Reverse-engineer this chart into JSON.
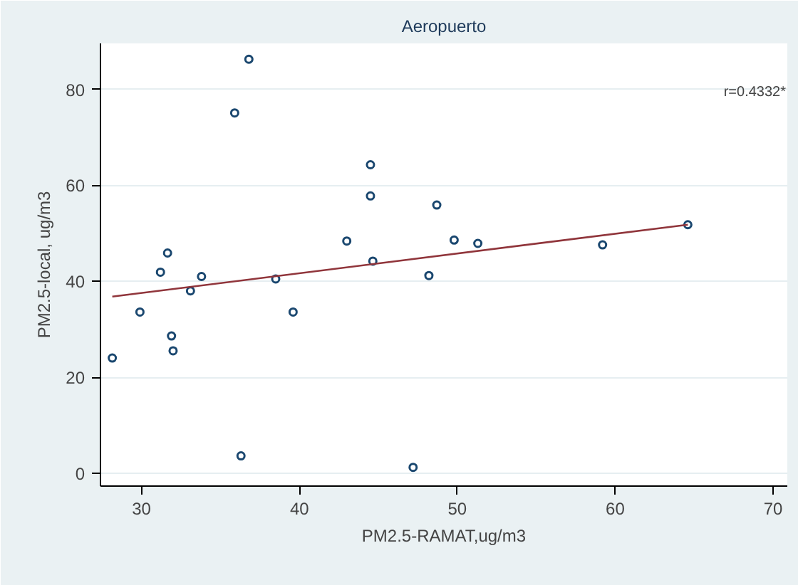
{
  "chart_data": {
    "type": "scatter",
    "title": "Aeropuerto",
    "xlabel": "PM2.5-RAMAT,ug/m3",
    "ylabel": "PM2.5-local, ug/m3",
    "xlim": [
      27.4,
      70.9
    ],
    "ylim": [
      -2.7,
      89.6
    ],
    "xticks": [
      30,
      40,
      50,
      60,
      70
    ],
    "yticks": [
      0,
      20,
      40,
      60,
      80
    ],
    "grid": "y",
    "marker": "circle",
    "annotations": [
      "r=0.4332*"
    ],
    "series": [
      {
        "color": "#1a476f",
        "x": [
          28.15,
          29.9,
          31.2,
          31.65,
          31.9,
          32.0,
          33.1,
          33.8,
          35.9,
          36.8,
          36.3,
          38.5,
          39.6,
          43.0,
          44.5,
          44.5,
          44.65,
          47.2,
          48.2,
          48.7,
          49.8,
          51.3,
          59.2,
          64.6
        ],
        "values": [
          24.0,
          33.6,
          41.9,
          45.9,
          28.6,
          25.5,
          38.0,
          41.0,
          75.1,
          86.3,
          3.6,
          40.5,
          33.6,
          48.4,
          64.3,
          57.8,
          44.2,
          1.2,
          41.2,
          55.9,
          48.6,
          47.9,
          47.6,
          51.8
        ]
      },
      {
        "type": "line",
        "color": "#90353b",
        "marker": "none",
        "x": [
          28.15,
          64.6
        ],
        "values": [
          36.8,
          51.8
        ]
      }
    ]
  }
}
